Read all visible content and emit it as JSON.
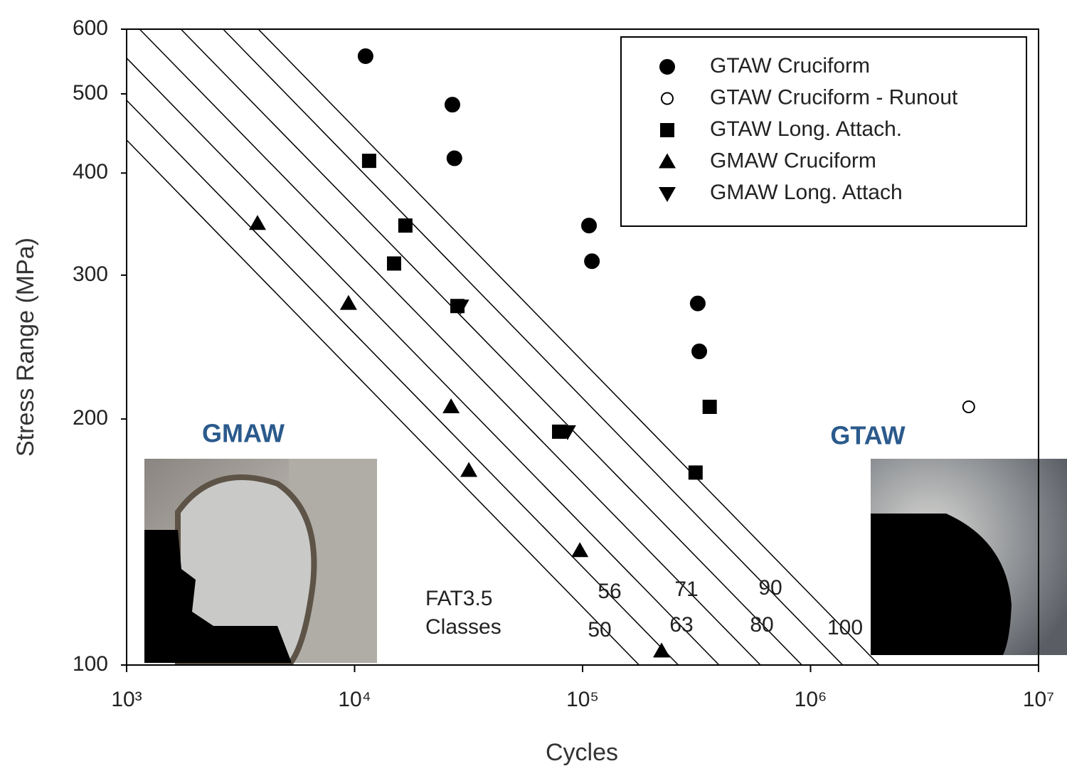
{
  "chart_data": {
    "type": "scatter",
    "x_label": "Cycles",
    "y_label": "Stress Range (MPa)",
    "xscale": "log",
    "yscale": "log",
    "xlim": [
      1000,
      10000000
    ],
    "ylim": [
      100,
      600
    ],
    "xticks": [
      {
        "value": 1000,
        "label": "10³"
      },
      {
        "value": 10000,
        "label": "10⁴"
      },
      {
        "value": 100000,
        "label": "10⁵"
      },
      {
        "value": 1000000,
        "label": "10⁶"
      },
      {
        "value": 10000000,
        "label": "10⁷"
      }
    ],
    "yticks": [
      100,
      200,
      300,
      400,
      500,
      600
    ],
    "legend": "upper right",
    "series": [
      {
        "name": "GTAW Cruciform",
        "marker": "circle",
        "color": "#000000",
        "x": [
          11170,
          26850,
          27400,
          106700,
          109900,
          320000,
          325000
        ],
        "values": [
          556,
          485,
          417,
          345,
          312,
          277,
          242
        ]
      },
      {
        "name": "GTAW Cruciform - Runout",
        "marker": "open-circle",
        "color": "#000000",
        "x": [
          4940000
        ],
        "values": [
          207
        ]
      },
      {
        "name": "GTAW Long. Attach.",
        "marker": "square",
        "color": "#000000",
        "x": [
          11580,
          16700,
          14900,
          28250,
          78900,
          361000,
          313000
        ],
        "values": [
          414,
          345,
          310,
          275,
          193,
          207,
          172
        ]
      },
      {
        "name": "GMAW Cruciform",
        "marker": "triangle-up",
        "color": "#000000",
        "x": [
          3750,
          9400,
          26500,
          31700,
          97300,
          222000
        ],
        "values": [
          347,
          277,
          207,
          173,
          138,
          104
        ]
      },
      {
        "name": "GMAW Long. Attach",
        "marker": "triangle-down",
        "color": "#000000",
        "x": [
          29200,
          85900
        ],
        "values": [
          275,
          193
        ]
      }
    ],
    "fat_lines": [
      {
        "name": "50",
        "x": [
          1000,
          177000
        ],
        "values": [
          439,
          100
        ]
      },
      {
        "name": "56",
        "x": [
          1000,
          263000
        ],
        "values": [
          491,
          100
        ]
      },
      {
        "name": "63",
        "x": [
          1000,
          397000
        ],
        "values": [
          553,
          100
        ]
      },
      {
        "name": "71",
        "x": [
          1140,
          603000
        ],
        "values": [
          600,
          100
        ]
      },
      {
        "name": "80",
        "x": [
          1730,
          916000
        ],
        "values": [
          600,
          100
        ]
      },
      {
        "name": "90",
        "x": [
          2650,
          1383000
        ],
        "values": [
          600,
          100
        ]
      },
      {
        "name": "100",
        "x": [
          3780,
          2000000
        ],
        "values": [
          600,
          100
        ]
      }
    ],
    "annotations": [
      "FAT3.5",
      "Classes",
      "GMAW",
      "GTAW"
    ]
  }
}
